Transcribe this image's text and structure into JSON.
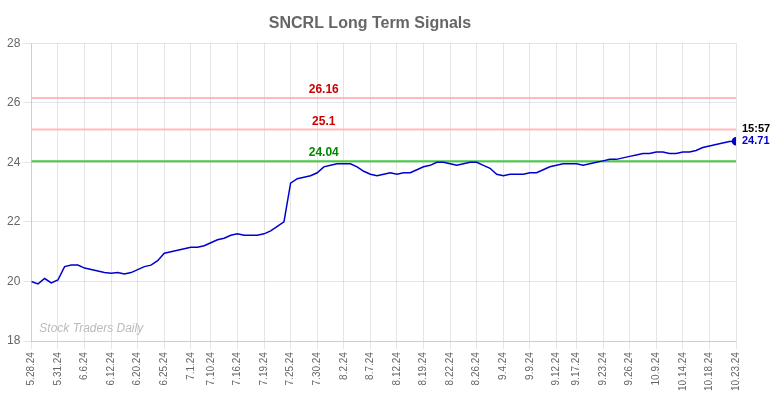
{
  "chart_data": {
    "type": "line",
    "title": "SNCRL Long Term Signals",
    "categories": [
      "5.28.24",
      null,
      null,
      null,
      "5.31.24",
      null,
      null,
      null,
      "6.6.24",
      null,
      null,
      null,
      "6.12.24",
      null,
      null,
      null,
      "6.20.24",
      null,
      null,
      null,
      "6.25.24",
      null,
      null,
      null,
      "7.1.24",
      null,
      null,
      "7.10.24",
      null,
      null,
      null,
      "7.16.24",
      null,
      null,
      null,
      "7.19.24",
      null,
      null,
      null,
      "7.25.24",
      null,
      null,
      null,
      "7.30.24",
      null,
      null,
      null,
      "8.2.24",
      null,
      null,
      null,
      "8.7.24",
      null,
      null,
      null,
      "8.12.24",
      null,
      null,
      null,
      "8.19.24",
      null,
      null,
      null,
      "8.22.24",
      null,
      null,
      null,
      "8.26.24",
      null,
      null,
      null,
      "9.4.24",
      null,
      null,
      null,
      "9.9.24",
      null,
      null,
      null,
      "9.12.24",
      null,
      null,
      "9.17.24",
      null,
      null,
      null,
      "9.23.24",
      null,
      null,
      null,
      "9.26.24",
      null,
      null,
      null,
      "10.9.24",
      null,
      null,
      null,
      "10.14.24",
      null,
      null,
      null,
      "10.18.24",
      null,
      null,
      null,
      "10.23.24"
    ],
    "values": [
      20.0,
      19.92,
      20.1,
      19.95,
      20.05,
      20.5,
      20.55,
      20.55,
      20.45,
      20.4,
      20.35,
      20.3,
      20.28,
      20.3,
      20.25,
      20.3,
      20.4,
      20.5,
      20.55,
      20.7,
      20.95,
      21.0,
      21.05,
      21.1,
      21.15,
      21.15,
      21.2,
      21.3,
      21.4,
      21.45,
      21.55,
      21.6,
      21.55,
      21.55,
      21.55,
      21.6,
      21.7,
      21.85,
      22.0,
      23.3,
      23.45,
      23.5,
      23.55,
      23.65,
      23.85,
      23.9,
      23.95,
      23.95,
      23.95,
      23.85,
      23.7,
      23.6,
      23.55,
      23.6,
      23.65,
      23.6,
      23.65,
      23.65,
      23.75,
      23.85,
      23.9,
      24.0,
      24.0,
      23.95,
      23.9,
      23.95,
      24.0,
      24.0,
      23.9,
      23.8,
      23.6,
      23.55,
      23.6,
      23.6,
      23.6,
      23.65,
      23.65,
      23.75,
      23.85,
      23.9,
      23.95,
      23.95,
      23.95,
      23.9,
      23.95,
      24.0,
      24.05,
      24.1,
      24.1,
      24.15,
      24.2,
      24.25,
      24.3,
      24.3,
      24.35,
      24.35,
      24.3,
      24.3,
      24.35,
      24.35,
      24.4,
      24.5,
      24.55,
      24.6,
      24.65,
      24.7,
      24.71
    ],
    "color": "#0000cc",
    "ylim": [
      18,
      28
    ],
    "yticks": [
      18,
      20,
      22,
      24,
      26,
      28
    ],
    "grid": true,
    "reference_lines": [
      {
        "value": 26.16,
        "label": "26.16",
        "color": "#ffbbbb",
        "label_color": "#cc0000"
      },
      {
        "value": 25.1,
        "label": "25.1",
        "color": "#ffbbbb",
        "label_color": "#cc0000"
      },
      {
        "value": 24.04,
        "label": "24.04",
        "color": "#44cc44",
        "label_color": "#008800"
      }
    ],
    "annotations": [
      {
        "text": "15:57",
        "color": "#000000"
      },
      {
        "text": "24.71",
        "color": "#0000cc"
      }
    ],
    "watermark": {
      "text": "Stock Traders Daily",
      "color": "#bbbbbb"
    }
  }
}
